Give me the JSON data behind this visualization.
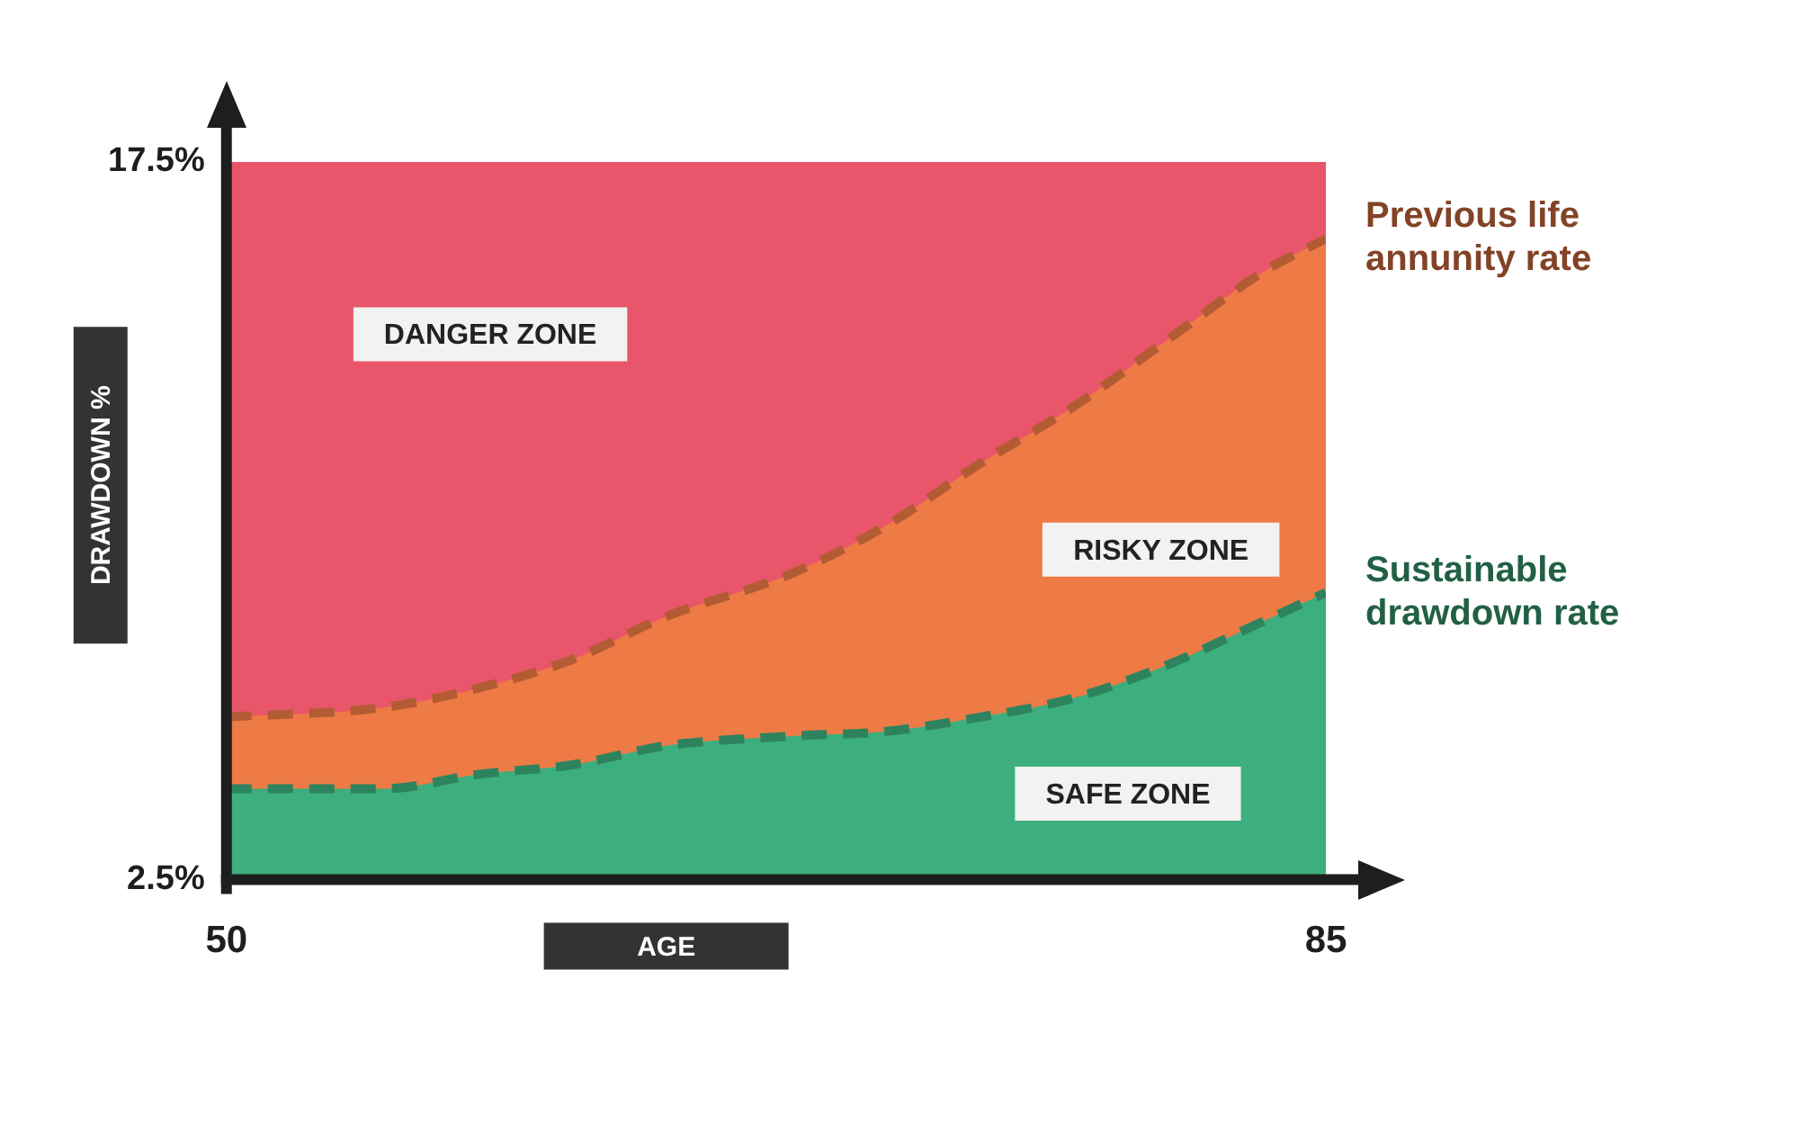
{
  "chart_data": {
    "type": "area",
    "xlabel": "AGE",
    "ylabel": "DRAWDOWN %",
    "x": [
      50,
      55,
      58,
      61,
      64,
      68,
      71,
      74,
      77,
      80,
      83,
      85
    ],
    "series": [
      {
        "name": "Sustainable drawdown rate",
        "color": "#3dae7e",
        "values": [
          4.4,
          4.4,
          4.7,
          4.9,
          5.3,
          5.5,
          5.6,
          5.9,
          6.3,
          7.0,
          7.9,
          8.5
        ]
      },
      {
        "name": "Previous life annunity rate",
        "color": "#ee7a45",
        "values": [
          5.9,
          6.1,
          6.5,
          7.1,
          8.0,
          8.9,
          9.9,
          11.2,
          12.4,
          13.8,
          15.2,
          15.9
        ]
      }
    ],
    "xlim": [
      50,
      85
    ],
    "xticks": [
      50,
      85
    ],
    "ylim": [
      2.5,
      17.5
    ],
    "yticks": [
      {
        "value": 2.5,
        "label": "2.5%"
      },
      {
        "value": 17.5,
        "label": "17.5%"
      }
    ],
    "line_style": "dashed",
    "grid": false,
    "legend": false,
    "bands": [
      {
        "axis": "y",
        "from": 2.5,
        "to": 17.5,
        "color": "#e9556a"
      }
    ],
    "annotations": [
      "DANGER ZONE",
      "RISKY ZONE",
      "SAFE ZONE"
    ]
  }
}
